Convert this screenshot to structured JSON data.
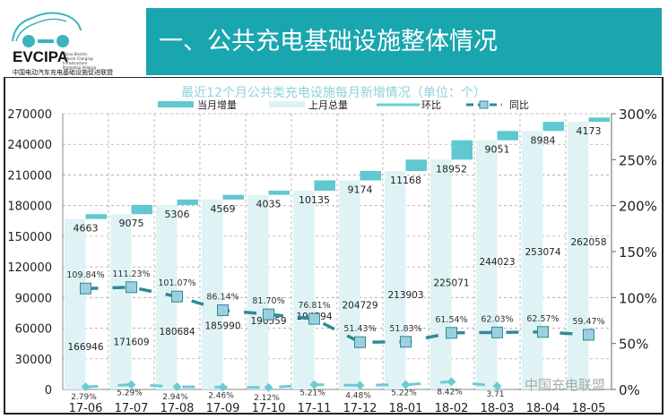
{
  "header": {
    "title": "一、公共充电基础设施整体情况",
    "logo_text": "EVCIPA",
    "logo_subtitle": "China Electric Vehicle Charging Infrastructure Promotion Alliance",
    "logo_cn": "中国电动汽车充电基础设施促进联盟"
  },
  "watermark": "中国充电联盟",
  "colors": {
    "banner": "#1aa6ae",
    "increment": "#5fc8d0",
    "previous_total": "#dff3f5",
    "mom_line": "#6ccbd3",
    "yoy_line": "#2f8a96",
    "yoy_marker": "#9ccfe0"
  },
  "chart_data": {
    "type": "bar",
    "title": "最近12个月公共类充电设施每月新增情况（单位：个）",
    "categories": [
      "17-06",
      "17-07",
      "17-08",
      "17-09",
      "17-10",
      "17-11",
      "17-12",
      "18-01",
      "18-02",
      "18-03",
      "18-04",
      "18-05"
    ],
    "series": [
      {
        "name": "当月增量",
        "type": "bar",
        "values": [
          4663,
          9075,
          5306,
          4569,
          4035,
          10135,
          9174,
          11168,
          18952,
          9051,
          8984,
          4173
        ]
      },
      {
        "name": "上月总量",
        "type": "bar",
        "values": [
          166946,
          171609,
          180684,
          185990,
          190559,
          194594,
          204729,
          213903,
          225071,
          244023,
          253074,
          262058
        ]
      },
      {
        "name": "环比",
        "type": "line",
        "axis": "right",
        "values": [
          2.79,
          5.29,
          2.94,
          2.46,
          2.12,
          5.21,
          4.48,
          5.22,
          8.42,
          3.71,
          null,
          null
        ],
        "labels": [
          "2.79%",
          "5.29%",
          "2.94%",
          "2.46%",
          "2.12%",
          "5.21%",
          "4.48%",
          "5.22%",
          "8.42%",
          "3.71",
          "",
          ""
        ]
      },
      {
        "name": "同比",
        "type": "line",
        "axis": "right",
        "values": [
          109.84,
          111.23,
          101.07,
          86.14,
          81.7,
          76.81,
          51.43,
          51.83,
          61.54,
          62.03,
          62.57,
          59.47
        ],
        "labels": [
          "109.84%",
          "111.23%",
          "101.07%",
          "86.14%",
          "81.70%",
          "76.81%",
          "51.43%",
          "51.83%",
          "61.54%",
          "62.03%",
          "62.57%",
          "59.47%"
        ]
      }
    ],
    "y_left": {
      "ticks": [
        "0",
        "30000",
        "60000",
        "90000",
        "120000",
        "150000",
        "180000",
        "210000",
        "240000",
        "270000"
      ],
      "range": [
        0,
        270000
      ]
    },
    "y_right": {
      "ticks": [
        "0%",
        "50%",
        "100%",
        "150%",
        "200%",
        "250%",
        "300%"
      ],
      "range": [
        0,
        300
      ]
    },
    "legend_position": "top",
    "grid": true
  }
}
